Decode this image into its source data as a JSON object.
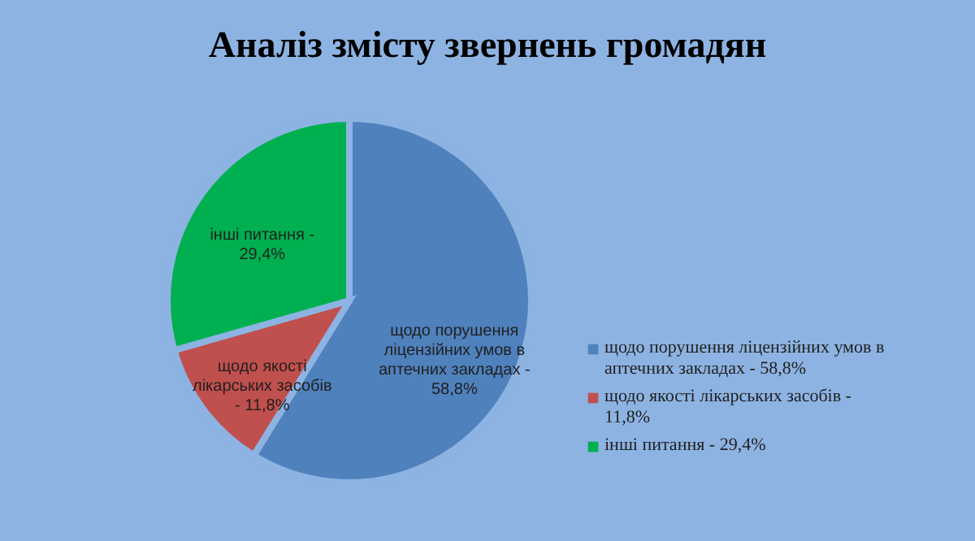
{
  "chart_data": {
    "type": "pie",
    "title": "Аналіз змісту звернень громадян",
    "categories": [
      "щодо порушення ліцензійних умов в аптечних закладах - 58,8%",
      "щодо якості лікарських засобів - 11,8%",
      "інші питання - 29,4%"
    ],
    "values": [
      58.8,
      11.8,
      29.4
    ],
    "colors": [
      "#4f81bd",
      "#c0504d",
      "#00b050"
    ],
    "legend": "right"
  }
}
